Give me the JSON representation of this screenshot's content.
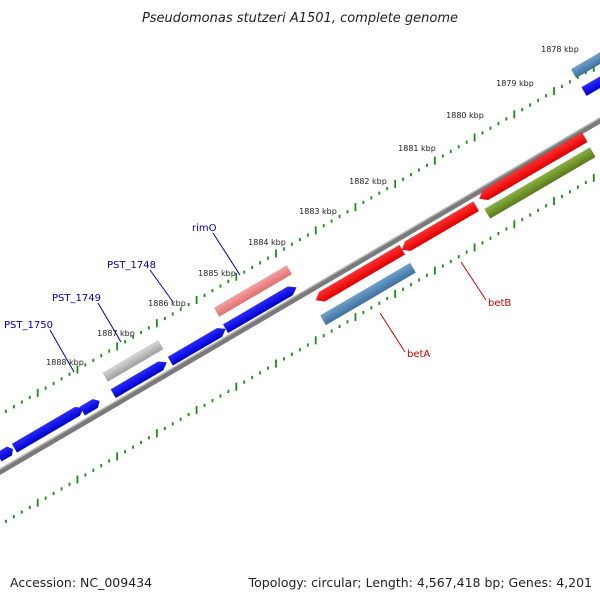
{
  "title": "Pseudomonas stutzeri A1501, complete genome",
  "footer": {
    "accession": "Accession: NC_009434",
    "summary": "Topology: circular; Length: 4,567,418 bp; Genes: 4,201"
  },
  "ticks": [
    {
      "label": "1878 kbp"
    },
    {
      "label": "1879 kbp"
    },
    {
      "label": "1880 kbp"
    },
    {
      "label": "1881 kbp"
    },
    {
      "label": "1882 kbp"
    },
    {
      "label": "1883 kbp"
    },
    {
      "label": "1884 kbp"
    },
    {
      "label": "1885 kbp"
    },
    {
      "label": "1886 kbp"
    },
    {
      "label": "1887 kbp"
    },
    {
      "label": "1888 kbp"
    }
  ],
  "genes": [
    {
      "label": "rimO",
      "color": "#0000aa"
    },
    {
      "label": "PST_1748",
      "color": "#0000aa"
    },
    {
      "label": "PST_1749",
      "color": "#0000aa"
    },
    {
      "label": "PST_1750",
      "color": "#0000aa"
    },
    {
      "label": "betA",
      "color": "#cc0000"
    },
    {
      "label": "betB",
      "color": "#cc0000"
    }
  ],
  "colors": {
    "cds": "#0000ee",
    "rna": "#ff0000",
    "faded_rna": "#f08080",
    "pseudo": "#b8b8b8",
    "steelblue": "#4682b4",
    "olive": "#6b8e23",
    "backbone": "#7f7f7f",
    "tick": "#1a8a1a"
  }
}
